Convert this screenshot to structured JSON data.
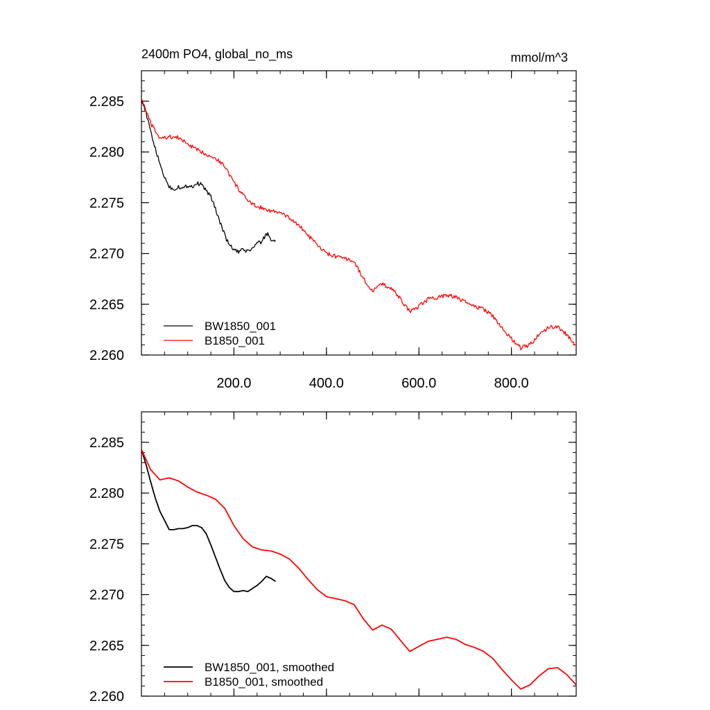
{
  "chart_data": [
    {
      "type": "line",
      "title": "2400m PO4, global_no_ms",
      "units": "mmol/m^3",
      "xlim": [
        0,
        940
      ],
      "ylim": [
        2.26,
        2.288
      ],
      "x_ticks": [
        200,
        400,
        600,
        800
      ],
      "x_tick_labels": [
        "200.0",
        "400.0",
        "600.0",
        "800.0"
      ],
      "y_ticks": [
        2.26,
        2.265,
        2.27,
        2.275,
        2.28,
        2.285
      ],
      "y_tick_labels": [
        "2.260",
        "2.265",
        "2.270",
        "2.275",
        "2.280",
        "2.285"
      ],
      "grid": false,
      "legend_position": "bottom-left",
      "series": [
        {
          "name": "BW1850_001",
          "color": "#000000",
          "points": [
            [
              0,
              2.2853
            ],
            [
              10,
              2.2838
            ],
            [
              20,
              2.282
            ],
            [
              30,
              2.2803
            ],
            [
              40,
              2.2788
            ],
            [
              50,
              2.2775
            ],
            [
              60,
              2.2766
            ],
            [
              70,
              2.2763
            ],
            [
              80,
              2.2766
            ],
            [
              90,
              2.2764
            ],
            [
              100,
              2.2767
            ],
            [
              110,
              2.2766
            ],
            [
              120,
              2.2769
            ],
            [
              130,
              2.2768
            ],
            [
              140,
              2.2762
            ],
            [
              150,
              2.2756
            ],
            [
              160,
              2.2744
            ],
            [
              170,
              2.2731
            ],
            [
              180,
              2.2718
            ],
            [
              190,
              2.2708
            ],
            [
              200,
              2.2704
            ],
            [
              210,
              2.2701
            ],
            [
              220,
              2.2704
            ],
            [
              230,
              2.2702
            ],
            [
              240,
              2.2705
            ],
            [
              250,
              2.271
            ],
            [
              260,
              2.2711
            ],
            [
              270,
              2.272
            ],
            [
              275,
              2.2718
            ],
            [
              280,
              2.2713
            ],
            [
              290,
              2.2713
            ]
          ]
        },
        {
          "name": "B1850_001",
          "color": "#ff0000",
          "points": [
            [
              0,
              2.2853
            ],
            [
              20,
              2.2828
            ],
            [
              40,
              2.2813
            ],
            [
              60,
              2.2815
            ],
            [
              80,
              2.2814
            ],
            [
              100,
              2.2808
            ],
            [
              120,
              2.2802
            ],
            [
              140,
              2.2798
            ],
            [
              160,
              2.2794
            ],
            [
              180,
              2.2786
            ],
            [
              200,
              2.277
            ],
            [
              220,
              2.2757
            ],
            [
              240,
              2.2748
            ],
            [
              260,
              2.2745
            ],
            [
              280,
              2.2742
            ],
            [
              300,
              2.274
            ],
            [
              320,
              2.2735
            ],
            [
              340,
              2.2728
            ],
            [
              360,
              2.2718
            ],
            [
              380,
              2.2708
            ],
            [
              400,
              2.27
            ],
            [
              420,
              2.2697
            ],
            [
              440,
              2.2695
            ],
            [
              460,
              2.2692
            ],
            [
              480,
              2.2675
            ],
            [
              500,
              2.2663
            ],
            [
              520,
              2.267
            ],
            [
              540,
              2.2666
            ],
            [
              560,
              2.2655
            ],
            [
              580,
              2.2643
            ],
            [
              600,
              2.2648
            ],
            [
              620,
              2.2655
            ],
            [
              640,
              2.2657
            ],
            [
              660,
              2.2659
            ],
            [
              680,
              2.2657
            ],
            [
              700,
              2.2652
            ],
            [
              720,
              2.2648
            ],
            [
              740,
              2.2645
            ],
            [
              760,
              2.2638
            ],
            [
              780,
              2.2627
            ],
            [
              800,
              2.2616
            ],
            [
              820,
              2.2607
            ],
            [
              840,
              2.261
            ],
            [
              860,
              2.262
            ],
            [
              880,
              2.2627
            ],
            [
              900,
              2.2628
            ],
            [
              920,
              2.262
            ],
            [
              940,
              2.261
            ]
          ]
        }
      ]
    },
    {
      "type": "line",
      "title": "",
      "xlim": [
        0,
        940
      ],
      "ylim": [
        2.26,
        2.288
      ],
      "x_ticks": [
        200,
        400,
        600,
        800
      ],
      "y_ticks": [
        2.26,
        2.265,
        2.27,
        2.275,
        2.28,
        2.285
      ],
      "y_tick_labels": [
        "2.260",
        "2.265",
        "2.270",
        "2.275",
        "2.280",
        "2.285"
      ],
      "grid": false,
      "legend_position": "bottom-left",
      "series": [
        {
          "name": "BW1850_001, smoothed",
          "color": "#000000",
          "points": [
            [
              0,
              2.2843
            ],
            [
              10,
              2.2828
            ],
            [
              20,
              2.2811
            ],
            [
              30,
              2.2795
            ],
            [
              40,
              2.2782
            ],
            [
              50,
              2.2773
            ],
            [
              60,
              2.2764
            ],
            [
              70,
              2.2764
            ],
            [
              80,
              2.2765
            ],
            [
              90,
              2.2765
            ],
            [
              100,
              2.2766
            ],
            [
              110,
              2.2768
            ],
            [
              120,
              2.2768
            ],
            [
              130,
              2.2766
            ],
            [
              140,
              2.276
            ],
            [
              150,
              2.2749
            ],
            [
              160,
              2.2737
            ],
            [
              170,
              2.2725
            ],
            [
              180,
              2.2714
            ],
            [
              190,
              2.2707
            ],
            [
              200,
              2.2703
            ],
            [
              210,
              2.2703
            ],
            [
              220,
              2.2704
            ],
            [
              230,
              2.2703
            ],
            [
              240,
              2.2706
            ],
            [
              250,
              2.2709
            ],
            [
              260,
              2.2713
            ],
            [
              270,
              2.2718
            ],
            [
              280,
              2.2716
            ],
            [
              290,
              2.2713
            ]
          ]
        },
        {
          "name": "B1850_001, smoothed",
          "color": "#ff0000",
          "points": [
            [
              0,
              2.2843
            ],
            [
              20,
              2.2823
            ],
            [
              40,
              2.2813
            ],
            [
              60,
              2.2815
            ],
            [
              80,
              2.2812
            ],
            [
              100,
              2.2806
            ],
            [
              120,
              2.2801
            ],
            [
              140,
              2.2798
            ],
            [
              160,
              2.2794
            ],
            [
              180,
              2.2785
            ],
            [
              200,
              2.2768
            ],
            [
              220,
              2.2755
            ],
            [
              240,
              2.2747
            ],
            [
              260,
              2.2744
            ],
            [
              280,
              2.2743
            ],
            [
              300,
              2.274
            ],
            [
              320,
              2.2735
            ],
            [
              340,
              2.2726
            ],
            [
              360,
              2.2715
            ],
            [
              380,
              2.2705
            ],
            [
              400,
              2.2698
            ],
            [
              420,
              2.2696
            ],
            [
              440,
              2.2694
            ],
            [
              460,
              2.269
            ],
            [
              480,
              2.2676
            ],
            [
              500,
              2.2665
            ],
            [
              520,
              2.267
            ],
            [
              540,
              2.2666
            ],
            [
              560,
              2.2655
            ],
            [
              580,
              2.2644
            ],
            [
              600,
              2.2649
            ],
            [
              620,
              2.2654
            ],
            [
              640,
              2.2656
            ],
            [
              660,
              2.2658
            ],
            [
              680,
              2.2656
            ],
            [
              700,
              2.2651
            ],
            [
              720,
              2.2648
            ],
            [
              740,
              2.2644
            ],
            [
              760,
              2.2637
            ],
            [
              780,
              2.2626
            ],
            [
              800,
              2.2616
            ],
            [
              820,
              2.2607
            ],
            [
              840,
              2.2611
            ],
            [
              860,
              2.262
            ],
            [
              880,
              2.2627
            ],
            [
              900,
              2.2628
            ],
            [
              920,
              2.2621
            ],
            [
              940,
              2.2611
            ]
          ]
        }
      ]
    }
  ]
}
